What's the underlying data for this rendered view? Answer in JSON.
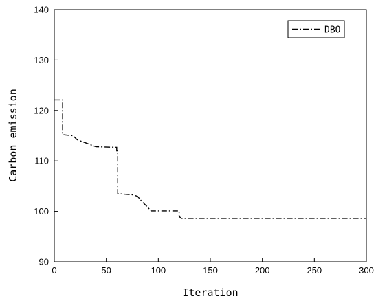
{
  "chart_data": {
    "type": "line",
    "xlabel": "Iteration",
    "ylabel": "Carbon emission",
    "xlim": [
      0,
      300
    ],
    "ylim": [
      90,
      140
    ],
    "xticks": [
      0,
      50,
      100,
      150,
      200,
      250,
      300
    ],
    "yticks": [
      90,
      100,
      110,
      120,
      130,
      140
    ],
    "grid": false,
    "legend_position": "top-right",
    "series": [
      {
        "name": "DBO",
        "line_style": "dash-dot",
        "color": "#000000",
        "x": [
          0,
          8,
          8,
          18,
          22,
          30,
          40,
          60,
          60,
          61,
          61,
          75,
          80,
          84,
          89,
          93,
          120,
          120,
          122,
          300
        ],
        "y": [
          122.1,
          122.1,
          115.2,
          115.0,
          114.2,
          113.6,
          112.8,
          112.7,
          112.0,
          112.0,
          103.5,
          103.3,
          103.0,
          102.0,
          101.0,
          100.1,
          100.1,
          99.0,
          98.6,
          98.6
        ]
      }
    ]
  }
}
